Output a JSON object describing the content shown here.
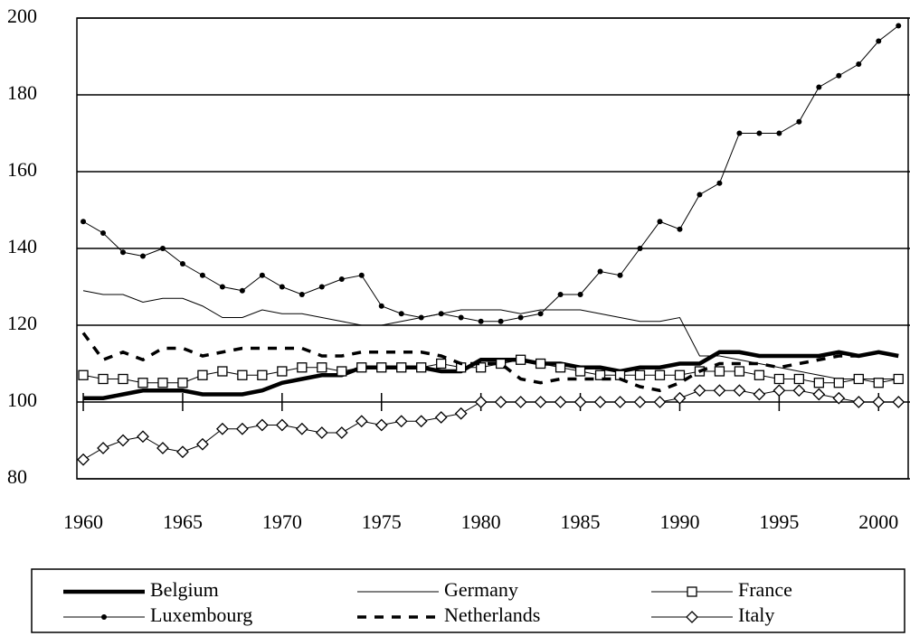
{
  "chart_data": {
    "type": "line",
    "x": [
      1960,
      1961,
      1962,
      1963,
      1964,
      1965,
      1966,
      1967,
      1968,
      1969,
      1970,
      1971,
      1972,
      1973,
      1974,
      1975,
      1976,
      1977,
      1978,
      1979,
      1980,
      1981,
      1982,
      1983,
      1984,
      1985,
      1986,
      1987,
      1988,
      1989,
      1990,
      1991,
      1992,
      1993,
      1994,
      1995,
      1996,
      1997,
      1998,
      1999,
      2000,
      2001
    ],
    "xlim": [
      1959.68,
      2001.58
    ],
    "xticks": [
      1960,
      1965,
      1970,
      1975,
      1980,
      1985,
      1990,
      1995,
      2000
    ],
    "ylim": [
      80,
      200
    ],
    "yticks": [
      80,
      100,
      120,
      140,
      160,
      180,
      200
    ],
    "grid": true,
    "series": [
      {
        "name": "Belgium",
        "color": "#000000",
        "width": 4.5,
        "dash": "none",
        "marker": "none",
        "values": [
          101,
          101,
          102,
          103,
          103,
          103,
          102,
          102,
          102,
          103,
          105,
          106,
          107,
          107,
          109,
          109,
          109,
          109,
          108,
          108,
          111,
          111,
          111,
          110,
          110,
          109,
          109,
          108,
          109,
          109,
          110,
          110,
          113,
          113,
          112,
          112,
          112,
          112,
          113,
          112,
          113,
          112
        ]
      },
      {
        "name": "Germany",
        "color": "#000000",
        "width": 1,
        "dash": "none",
        "marker": "none",
        "values": [
          129,
          128,
          128,
          126,
          127,
          127,
          125,
          122,
          122,
          124,
          123,
          123,
          122,
          121,
          120,
          120,
          121,
          122,
          123,
          124,
          124,
          124,
          123,
          124,
          124,
          124,
          123,
          122,
          121,
          121,
          122,
          112,
          112,
          111,
          110,
          109,
          108,
          107,
          106,
          106,
          106,
          106
        ]
      },
      {
        "name": "France",
        "color": "#000000",
        "width": 1,
        "dash": "none",
        "marker": "square",
        "values": [
          107,
          106,
          106,
          105,
          105,
          105,
          107,
          108,
          107,
          107,
          108,
          109,
          109,
          108,
          109,
          109,
          109,
          109,
          110,
          109,
          109,
          110,
          111,
          110,
          109,
          108,
          107,
          107,
          107,
          107,
          107,
          108,
          108,
          108,
          107,
          106,
          106,
          105,
          105,
          106,
          105,
          106
        ]
      },
      {
        "name": "Luxembourg",
        "color": "#000000",
        "width": 1,
        "dash": "none",
        "marker": "dot",
        "values": [
          147,
          144,
          139,
          138,
          140,
          136,
          133,
          130,
          129,
          133,
          130,
          128,
          130,
          132,
          133,
          125,
          123,
          122,
          123,
          122,
          121,
          121,
          122,
          123,
          128,
          128,
          134,
          133,
          140,
          147,
          145,
          154,
          157,
          170,
          170,
          170,
          173,
          182,
          185,
          188,
          194,
          198
        ]
      },
      {
        "name": "Netherlands",
        "color": "#000000",
        "width": 3.5,
        "dash": "10 9",
        "marker": "none",
        "values": [
          118,
          111,
          113,
          111,
          114,
          114,
          112,
          113,
          114,
          114,
          114,
          114,
          112,
          112,
          113,
          113,
          113,
          113,
          112,
          110,
          110,
          110,
          106,
          105,
          106,
          106,
          106,
          106,
          104,
          103,
          105,
          108,
          110,
          110,
          110,
          109,
          110,
          111,
          112,
          112,
          113,
          112
        ]
      },
      {
        "name": "Italy",
        "color": "#000000",
        "width": 1,
        "dash": "none",
        "marker": "diamond",
        "values": [
          85,
          88,
          90,
          91,
          88,
          87,
          89,
          93,
          93,
          94,
          94,
          93,
          92,
          92,
          95,
          94,
          95,
          95,
          96,
          97,
          100,
          100,
          100,
          100,
          100,
          100,
          100,
          100,
          100,
          100,
          101,
          103,
          103,
          103,
          102,
          103,
          103,
          102,
          101,
          100,
          100,
          100
        ]
      }
    ]
  }
}
